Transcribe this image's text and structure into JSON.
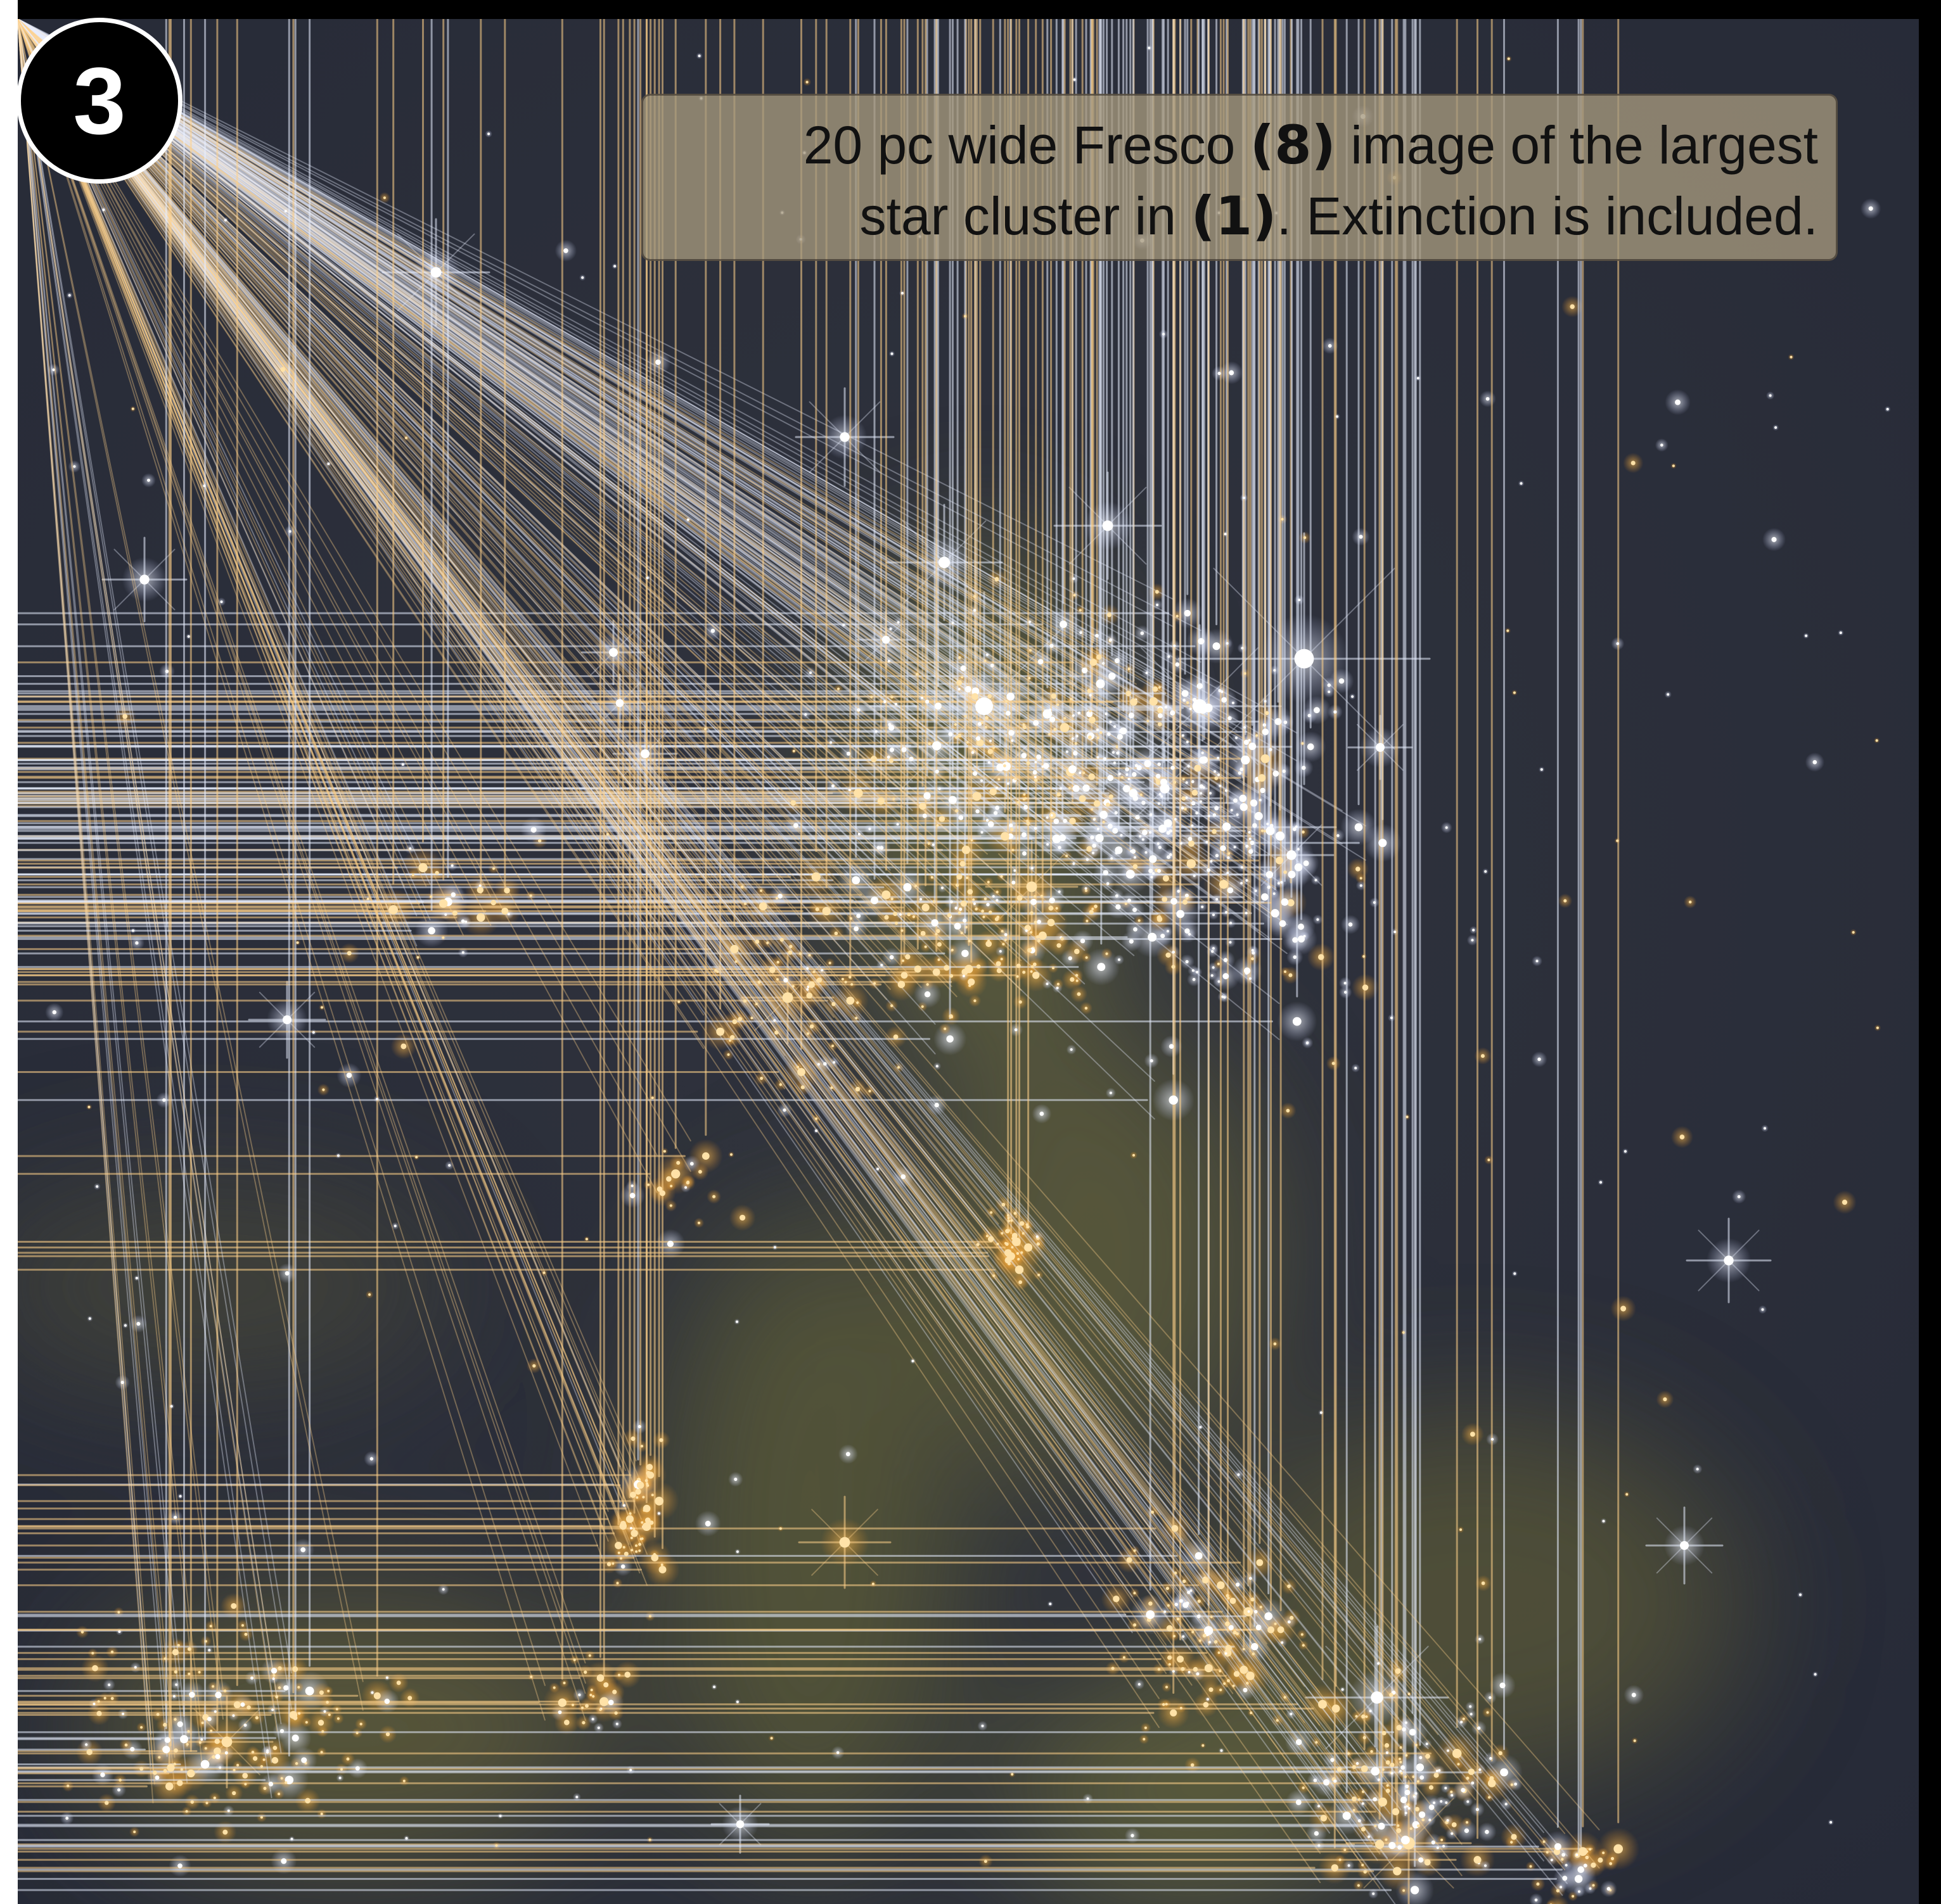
{
  "panel": {
    "number": "3"
  },
  "caption": {
    "line1": {
      "before": "20 pc wide Fresco ",
      "ref": "(8)",
      "after": " image of the largest"
    },
    "line2": {
      "before": "star cluster in ",
      "ref": "(1)",
      "after": ". Extinction is included."
    }
  },
  "colors": {
    "sky": "#2b2f3c",
    "frame": "#000000",
    "star_blue_white": "#f4f6ff",
    "star_orange": "#f2a43c",
    "dust": "#6b6a3c",
    "caption_box": "#a5987e"
  }
}
